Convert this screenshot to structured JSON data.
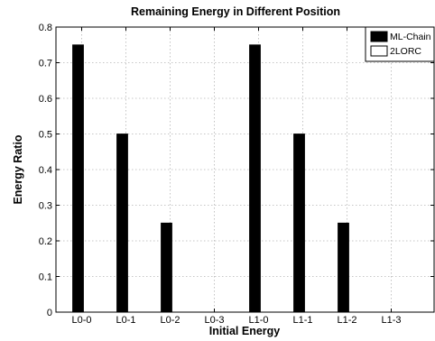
{
  "chart_data": {
    "type": "bar",
    "title": "Remaining Energy in Different Position",
    "xlabel": "Initial Energy",
    "ylabel": "Energy Ratio",
    "categories": [
      "L0-0",
      "L0-1",
      "L0-2",
      "L0-3",
      "L1-0",
      "L1-1",
      "L1-2",
      "L1-3"
    ],
    "series": [
      {
        "name": "ML-Chain",
        "values": [
          0.75,
          0.5,
          0.25,
          0,
          0.75,
          0.5,
          0.25,
          0
        ],
        "color": "#000000"
      },
      {
        "name": "2LORC",
        "values": [
          0,
          0,
          0,
          0,
          0,
          0,
          0,
          0
        ],
        "color": "#ffffff"
      }
    ],
    "ylim": [
      0,
      0.8
    ],
    "yticks": [
      "0",
      "0.1",
      "0.2",
      "0.3",
      "0.4",
      "0.5",
      "0.6",
      "0.7",
      "0.8"
    ],
    "grid": true,
    "legend_position": "top-right"
  }
}
